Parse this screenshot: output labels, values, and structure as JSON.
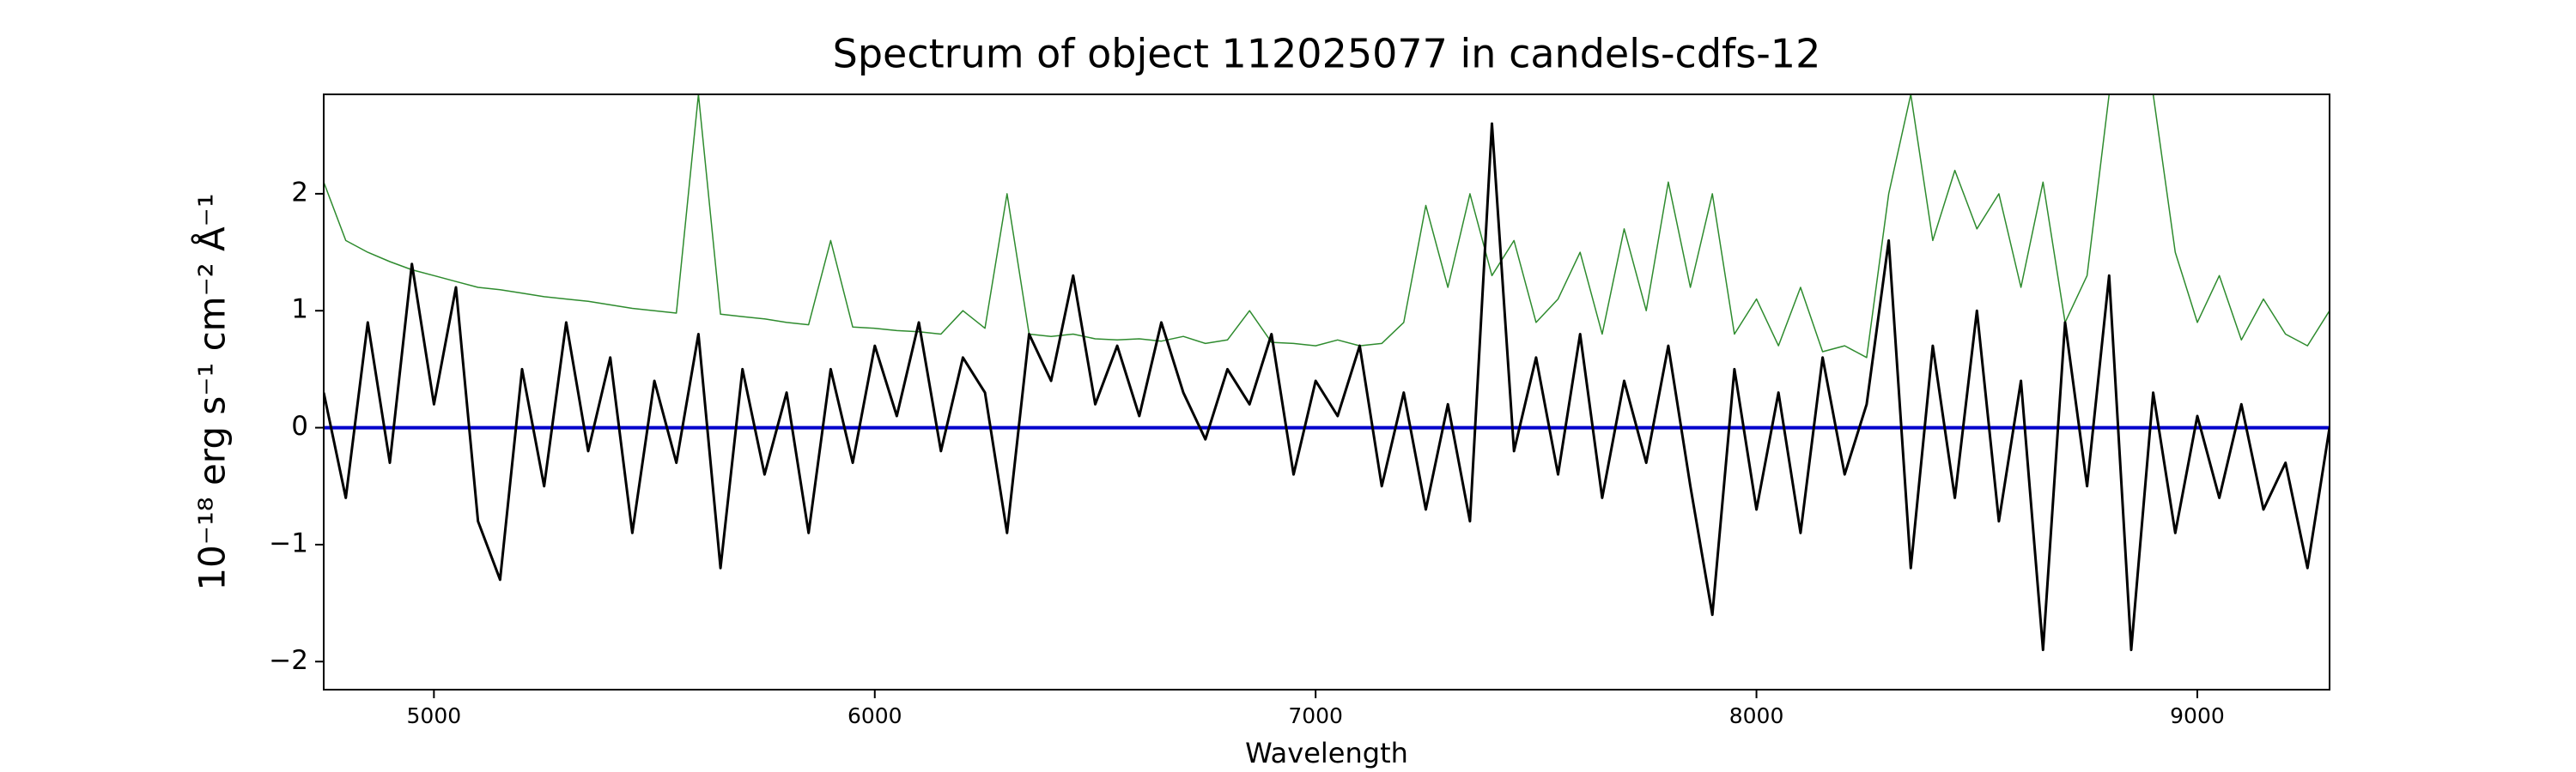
{
  "chart_data": {
    "type": "line",
    "title": "Spectrum of object 112025077 in candels-cdfs-12",
    "xlabel": "Wavelength",
    "ylabel": "10⁻¹⁸ erg s⁻¹ cm⁻² Å⁻¹",
    "xlim": [
      4750,
      9300
    ],
    "ylim": [
      -2.24,
      2.85
    ],
    "xticks": [
      5000,
      6000,
      7000,
      8000,
      9000
    ],
    "yticks": [
      {
        "value": -2,
        "label": "−2"
      },
      {
        "value": -1,
        "label": "−1"
      },
      0,
      1,
      2
    ],
    "x": [
      4750,
      4800,
      4850,
      4900,
      4950,
      5000,
      5050,
      5100,
      5150,
      5200,
      5250,
      5300,
      5350,
      5400,
      5450,
      5500,
      5550,
      5600,
      5650,
      5700,
      5750,
      5800,
      5850,
      5900,
      5950,
      6000,
      6050,
      6100,
      6150,
      6200,
      6250,
      6300,
      6350,
      6400,
      6450,
      6500,
      6550,
      6600,
      6650,
      6700,
      6750,
      6800,
      6850,
      6900,
      6950,
      7000,
      7050,
      7100,
      7150,
      7200,
      7250,
      7300,
      7350,
      7400,
      7450,
      7500,
      7550,
      7600,
      7650,
      7700,
      7750,
      7800,
      7850,
      7900,
      7950,
      8000,
      8050,
      8100,
      8150,
      8200,
      8250,
      8300,
      8350,
      8400,
      8450,
      8500,
      8550,
      8600,
      8650,
      8700,
      8750,
      8800,
      8850,
      8900,
      8950,
      9000,
      9050,
      9100,
      9150,
      9200,
      9250,
      9300
    ],
    "series": [
      {
        "color": "#2e8b2e",
        "width": 1.5,
        "values": [
          2.1,
          1.6,
          1.5,
          1.42,
          1.35,
          1.3,
          1.25,
          1.2,
          1.18,
          1.15,
          1.12,
          1.1,
          1.08,
          1.05,
          1.02,
          1.0,
          0.98,
          2.85,
          0.97,
          0.95,
          0.93,
          0.9,
          0.88,
          1.6,
          0.86,
          0.85,
          0.83,
          0.82,
          0.8,
          1.0,
          0.85,
          2.0,
          0.8,
          0.78,
          0.8,
          0.76,
          0.75,
          0.76,
          0.74,
          0.78,
          0.72,
          0.75,
          1.0,
          0.73,
          0.72,
          0.7,
          0.75,
          0.7,
          0.72,
          0.9,
          1.9,
          1.2,
          2.0,
          1.3,
          1.6,
          0.9,
          1.1,
          1.5,
          0.8,
          1.7,
          1.0,
          2.1,
          1.2,
          2.0,
          0.8,
          1.1,
          0.7,
          1.2,
          0.65,
          0.7,
          0.6,
          2.0,
          2.85,
          1.6,
          2.2,
          1.7,
          2.0,
          1.2,
          2.1,
          0.9,
          1.3,
          2.85,
          2.85,
          2.85,
          1.5,
          0.9,
          1.3,
          0.75,
          1.1,
          0.8,
          0.7,
          1.0
        ]
      },
      {
        "color": "#0000cc",
        "width": 4,
        "x": [
          4750,
          9300
        ],
        "values": [
          0,
          0
        ]
      },
      {
        "color": "#000000",
        "width": 3,
        "values": [
          0.3,
          -0.6,
          0.9,
          -0.3,
          1.4,
          0.2,
          1.2,
          -0.8,
          -1.3,
          0.5,
          -0.5,
          0.9,
          -0.2,
          0.6,
          -0.9,
          0.4,
          -0.3,
          0.8,
          -1.2,
          0.5,
          -0.4,
          0.3,
          -0.9,
          0.5,
          -0.3,
          0.7,
          0.1,
          0.9,
          -0.2,
          0.6,
          0.3,
          -0.9,
          0.8,
          0.4,
          1.3,
          0.2,
          0.7,
          0.1,
          0.9,
          0.3,
          -0.1,
          0.5,
          0.2,
          0.8,
          -0.4,
          0.4,
          0.1,
          0.7,
          -0.5,
          0.3,
          -0.7,
          0.2,
          -0.8,
          2.6,
          -0.2,
          0.6,
          -0.4,
          0.8,
          -0.6,
          0.4,
          -0.3,
          0.7,
          -0.5,
          -1.6,
          0.5,
          -0.7,
          0.3,
          -0.9,
          0.6,
          -0.4,
          0.2,
          1.6,
          -1.2,
          0.7,
          -0.6,
          1.0,
          -0.8,
          0.4,
          -1.9,
          0.9,
          -0.5,
          1.3,
          -1.9,
          0.3,
          -0.9,
          0.1,
          -0.6,
          0.2,
          -0.7,
          -0.3,
          -1.2,
          0.0
        ]
      }
    ]
  }
}
